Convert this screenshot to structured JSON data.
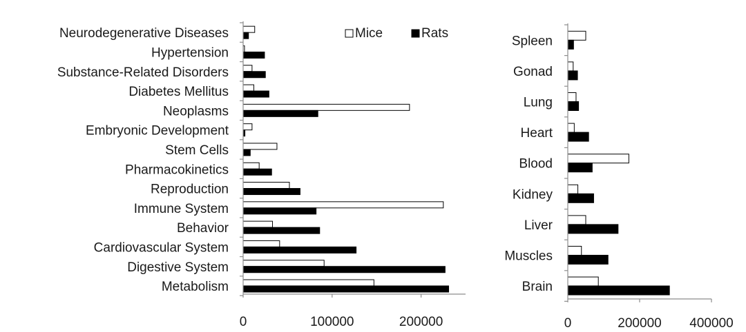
{
  "chart_data": [
    {
      "type": "bar",
      "orientation": "horizontal",
      "categories": [
        "Neurodegenerative Diseases",
        "Hypertension",
        "Substance-Related Disorders",
        "Diabetes Mellitus",
        "Neoplasms",
        "Embryonic Development",
        "Stem Cells",
        "Pharmacokinetics",
        "Reproduction",
        "Immune System",
        "Behavior",
        "Cardiovascular System",
        "Digestive System",
        "Metabolism"
      ],
      "series": [
        {
          "name": "Mice",
          "color": "#ffffff",
          "values": [
            13000,
            1500,
            10000,
            12000,
            187000,
            10000,
            38000,
            18000,
            52000,
            225000,
            33000,
            41000,
            91000,
            147000
          ]
        },
        {
          "name": "Rats",
          "color": "#000000",
          "values": [
            6000,
            24000,
            25000,
            29000,
            84000,
            2000,
            8000,
            32000,
            64000,
            82000,
            86000,
            127000,
            227000,
            231000
          ]
        }
      ],
      "xlim": [
        0,
        250000
      ],
      "xticks": [
        "0",
        "100000",
        "200000"
      ],
      "xtick_values": [
        0,
        100000,
        200000
      ],
      "legend": {
        "position": "top-right",
        "entries": [
          "Mice",
          "Rats"
        ]
      },
      "grid": false
    },
    {
      "type": "bar",
      "orientation": "horizontal",
      "categories": [
        "Spleen",
        "Gonad",
        "Lung",
        "Heart",
        "Blood",
        "Kidney",
        "Liver",
        "Muscles",
        "Brain"
      ],
      "series": [
        {
          "name": "Mice",
          "color": "#ffffff",
          "values": [
            50000,
            15000,
            23000,
            18000,
            170000,
            28000,
            50000,
            38000,
            85000
          ]
        },
        {
          "name": "Rats",
          "color": "#000000",
          "values": [
            16000,
            27000,
            30000,
            58000,
            68000,
            72000,
            140000,
            112000,
            283000
          ]
        }
      ],
      "xlim": [
        0,
        400000
      ],
      "xticks": [
        "0",
        "200000",
        "400000"
      ],
      "xtick_values": [
        0,
        200000,
        400000
      ],
      "legend": {
        "position": "none",
        "entries": []
      },
      "grid": false
    }
  ]
}
